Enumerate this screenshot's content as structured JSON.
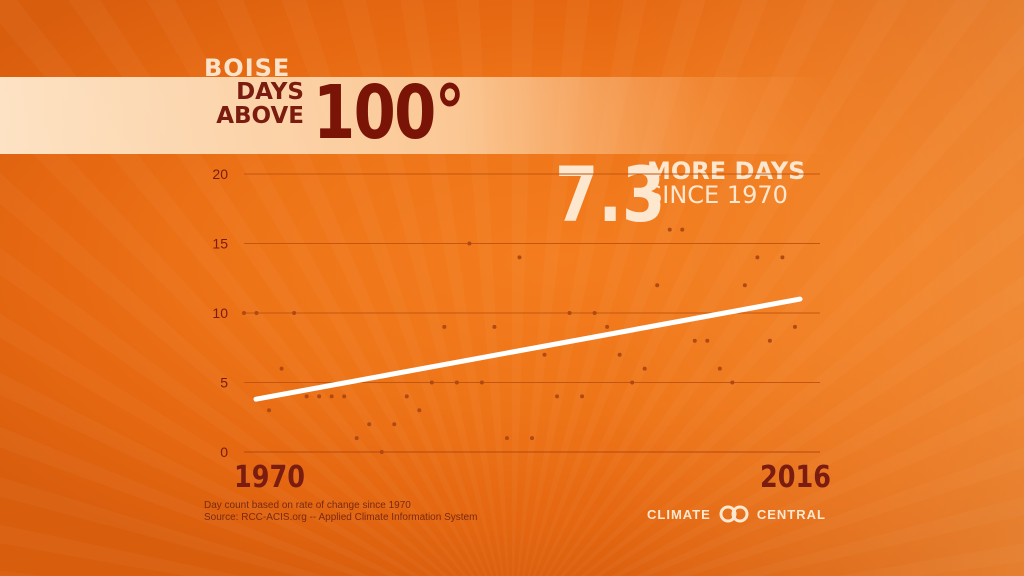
{
  "header": {
    "city": "BOISE",
    "metric": "DAYS\nABOVE",
    "threshold": "100°"
  },
  "callout": {
    "number": "7.3",
    "line1": "MORE DAYS",
    "line2": "SINCE 1970"
  },
  "notes": {
    "line1": "Day count based on rate of change since 1970",
    "line2": "Source: RCC-ACIS.org -- Applied Climate Information System"
  },
  "logo": {
    "left": "CLIMATE",
    "right": "CENTRAL"
  },
  "colors": {
    "dark_red": "#7a1c10",
    "cream": "#fde7cf",
    "trend": "#ffffff",
    "point": "#b04a12"
  },
  "chart_data": {
    "type": "scatter",
    "x_start_label": "1970",
    "x_end_label": "2016",
    "xlim": [
      1970,
      2016
    ],
    "ylim": [
      0,
      20
    ],
    "y_ticks": [
      0,
      5,
      10,
      15,
      20
    ],
    "grid": true,
    "x": [
      1970,
      1971,
      1972,
      1973,
      1974,
      1975,
      1976,
      1977,
      1978,
      1979,
      1980,
      1981,
      1982,
      1983,
      1984,
      1985,
      1986,
      1987,
      1988,
      1989,
      1990,
      1991,
      1992,
      1993,
      1994,
      1995,
      1996,
      1997,
      1998,
      1999,
      2000,
      2001,
      2002,
      2003,
      2004,
      2005,
      2006,
      2007,
      2008,
      2009,
      2010,
      2011,
      2012,
      2013,
      2014,
      2015,
      2016
    ],
    "values": [
      10,
      10,
      3,
      6,
      10,
      4,
      4,
      4,
      4,
      1,
      2,
      0,
      2,
      4,
      3,
      5,
      9,
      5,
      15,
      5,
      9,
      1,
      14,
      1,
      7,
      4,
      10,
      4,
      10,
      9,
      7,
      5,
      6,
      12,
      16,
      16,
      8,
      8,
      6,
      5,
      12,
      14,
      8,
      14,
      9,
      null,
      null
    ],
    "trend": {
      "start": 3.8,
      "end": 11.0
    }
  }
}
